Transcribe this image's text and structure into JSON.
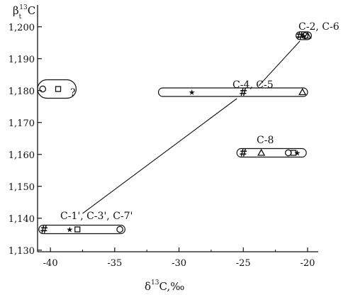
{
  "chart_data": {
    "type": "scatter",
    "title": "",
    "xlabel": {
      "main": "δ",
      "sup": "13",
      "rest": "C,‰"
    },
    "ylabel": {
      "main": "β",
      "sub": "t",
      "sup": "13",
      "rest": "C"
    },
    "xlim": [
      -41,
      -19.5
    ],
    "ylim": [
      1.1295,
      1.2055
    ],
    "x_ticks": [
      -40,
      -35,
      -30,
      -25,
      -20
    ],
    "x_tick_labels": [
      "-40",
      "-35",
      "-30",
      "-25",
      "-20"
    ],
    "y_ticks": [
      1.13,
      1.14,
      1.15,
      1.16,
      1.17,
      1.18,
      1.19,
      1.2
    ],
    "y_tick_labels": [
      "1,130",
      "1,140",
      "1,150",
      "1,160",
      "1,170",
      "1,180",
      "1,190",
      "1,200"
    ],
    "grid": false,
    "groups": [
      {
        "name": "C-1', C-3', C-7'",
        "x_range": [
          -40.9,
          -34.2
        ],
        "y": 1.1365,
        "points": [
          {
            "marker": "#",
            "x": -40.5,
            "y": 1.1365
          },
          {
            "marker": "star",
            "x": -38.5,
            "y": 1.1365
          },
          {
            "marker": "square",
            "x": -37.9,
            "y": 1.1365
          },
          {
            "marker": "circle",
            "x": -34.6,
            "y": 1.1365
          }
        ]
      },
      {
        "name": "C-4, C-5",
        "x_range": [
          -31.6,
          -20.0
        ],
        "y": 1.1795,
        "points": [
          {
            "marker": "star",
            "x": -29.0,
            "y": 1.1795
          },
          {
            "marker": "#",
            "x": -25.0,
            "y": 1.1795
          },
          {
            "marker": "triangle",
            "x": -20.4,
            "y": 1.1795
          }
        ]
      },
      {
        "name": "C-2, C-6",
        "x_range": [
          -20.9,
          -19.7
        ],
        "y": 1.1972,
        "points": [
          {
            "marker": "#",
            "x": -20.6,
            "y": 1.1972
          },
          {
            "marker": "star",
            "x": -20.3,
            "y": 1.1972
          },
          {
            "marker": "circle",
            "x": -20.2,
            "y": 1.1972
          },
          {
            "marker": "triangle",
            "x": -20.0,
            "y": 1.1972
          }
        ]
      },
      {
        "name": "C-8",
        "x_range": [
          -25.5,
          -20.1
        ],
        "y": 1.1605,
        "points": [
          {
            "marker": "#",
            "x": -25.0,
            "y": 1.1605
          },
          {
            "marker": "triangle",
            "x": -23.6,
            "y": 1.1605
          },
          {
            "marker": "circle",
            "x": -21.5,
            "y": 1.1605
          },
          {
            "marker": "square",
            "x": -21.1,
            "y": 1.1605
          },
          {
            "marker": "star",
            "x": -20.8,
            "y": 1.1605
          }
        ]
      },
      {
        "name": "?",
        "x_range": [
          -41.0,
          -38.0
        ],
        "y": 1.1805,
        "points": [
          {
            "marker": "circle",
            "x": -40.6,
            "y": 1.1805
          },
          {
            "marker": "square",
            "x": -39.4,
            "y": 1.1805
          }
        ]
      }
    ],
    "connectors": [
      {
        "from": [
          -37.5,
          1.1415
        ],
        "to": [
          -25.5,
          1.1775
        ]
      },
      {
        "from": [
          -23.8,
          1.1815
        ],
        "to": [
          -20.6,
          1.1955
        ]
      }
    ]
  }
}
